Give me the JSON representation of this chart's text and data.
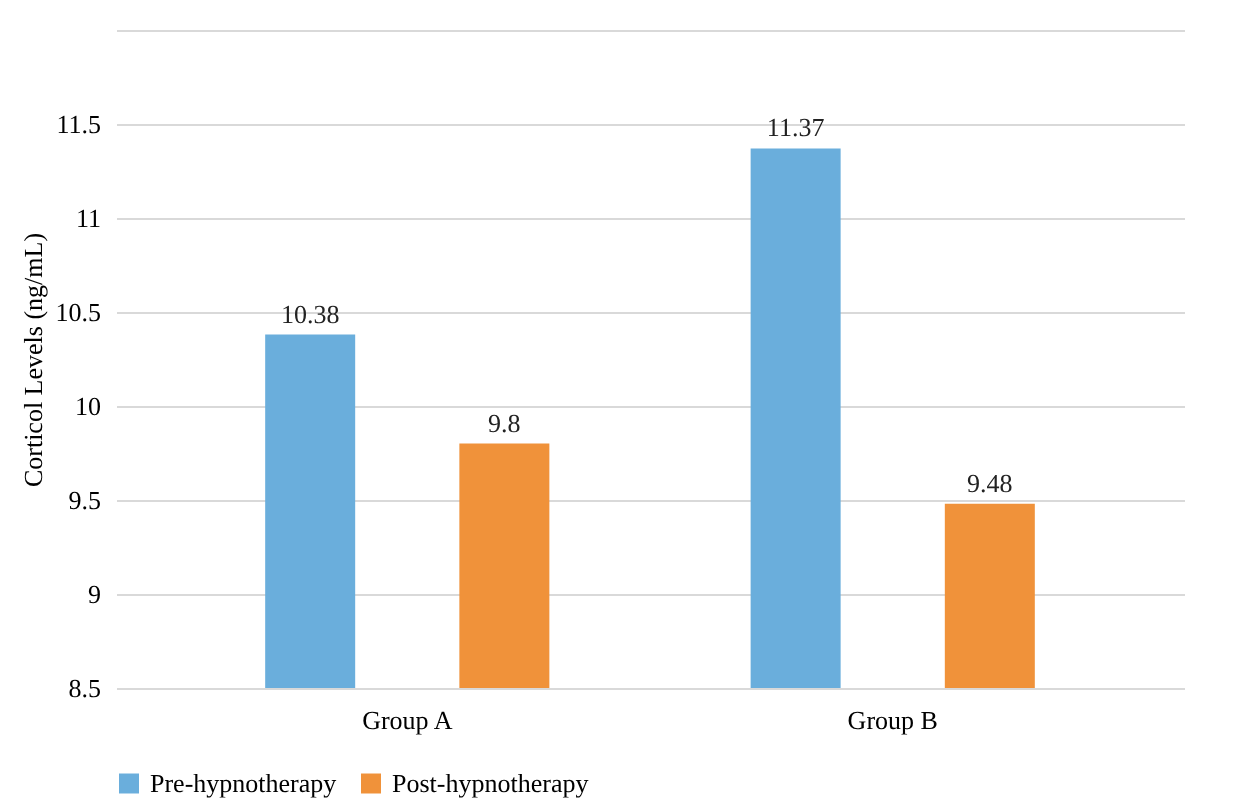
{
  "chart_data": {
    "type": "bar",
    "ylabel": "Corticol Levels (ng/mL)",
    "categories": [
      "Group A",
      "Group B"
    ],
    "series": [
      {
        "name": "Pre-hypnotherapy",
        "color": "#6aaedc",
        "values": [
          10.38,
          11.37
        ]
      },
      {
        "name": "Post-hypnotherapy",
        "color": "#f0923a",
        "values": [
          9.8,
          9.48
        ]
      }
    ],
    "ylim": [
      8.5,
      12
    ],
    "yticks": [
      8.5,
      9,
      9.5,
      10,
      10.5,
      11,
      11.5,
      {
        "value": 12,
        "label": null
      }
    ],
    "grid": "y",
    "legend": "bottom",
    "data_labels": true
  }
}
